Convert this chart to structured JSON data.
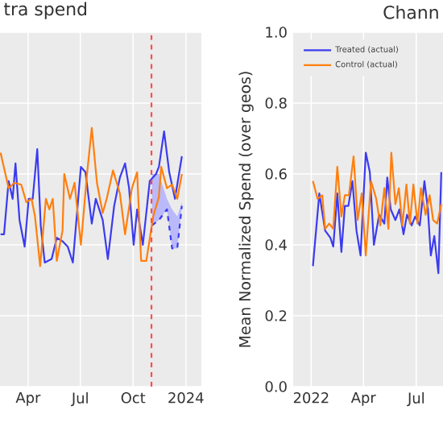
{
  "chart_data": [
    {
      "type": "line",
      "title": "tra spend",
      "xlim": [
        "2023-02-11",
        "2024-01-28"
      ],
      "xticks": [
        {
          "value": "2023-04-01",
          "label": "Apr"
        },
        {
          "value": "2023-07-01",
          "label": "Jul"
        },
        {
          "value": "2023-10-01",
          "label": "Oct"
        },
        {
          "value": "2024-01-01",
          "label": "2024"
        }
      ],
      "ylim": [
        0,
        1
      ],
      "yticks": [
        0,
        0.2,
        0.4,
        0.6,
        0.8,
        1
      ],
      "tick_labels": "x",
      "grid": true,
      "series": [
        {
          "color": "#3b3bf0",
          "line_style": "dashed",
          "x": [
            "2023-11-03",
            "2023-11-15",
            "2023-11-29",
            "2023-12-08",
            "2023-12-17",
            "2023-12-25"
          ],
          "values": [
            0.455,
            0.47,
            0.5,
            0.39,
            0.39,
            0.51
          ],
          "lower": [
            0.455,
            0.47,
            0.5,
            0.39,
            0.39,
            0.51
          ],
          "upper": [
            0.6,
            0.6,
            0.53,
            0.5,
            0.48,
            0.52
          ]
        },
        {
          "color": "#3b3bf0",
          "x": [
            "2023-02-12",
            "2023-02-18",
            "2023-02-26",
            "2023-03-05",
            "2023-03-10",
            "2023-03-17",
            "2023-03-26",
            "2023-04-02",
            "2023-04-09",
            "2023-04-17",
            "2023-04-23",
            "2023-04-30",
            "2023-05-12",
            "2023-05-21",
            "2023-05-31",
            "2023-06-09",
            "2023-06-18",
            "2023-07-02",
            "2023-07-10",
            "2023-07-21",
            "2023-07-28",
            "2023-08-09",
            "2023-08-18",
            "2023-08-29",
            "2023-09-08",
            "2023-09-17",
            "2023-09-24",
            "2023-10-02",
            "2023-10-08",
            "2023-10-18",
            "2023-10-30",
            "2023-11-10",
            "2023-11-15",
            "2023-11-24",
            "2023-12-03",
            "2023-12-13",
            "2023-12-25"
          ],
          "values": [
            0.43,
            0.43,
            0.58,
            0.53,
            0.63,
            0.47,
            0.395,
            0.53,
            0.53,
            0.67,
            0.455,
            0.35,
            0.36,
            0.42,
            0.41,
            0.395,
            0.35,
            0.62,
            0.605,
            0.46,
            0.53,
            0.47,
            0.36,
            0.51,
            0.59,
            0.63,
            0.56,
            0.4,
            0.5,
            0.4,
            0.58,
            0.6,
            0.62,
            0.72,
            0.605,
            0.53,
            0.65
          ]
        },
        {
          "color": "#ff7f0e",
          "x": [
            "2023-02-12",
            "2023-02-26",
            "2023-03-08",
            "2023-03-20",
            "2023-03-29",
            "2023-04-07",
            "2023-04-13",
            "2023-04-22",
            "2023-05-02",
            "2023-05-08",
            "2023-05-14",
            "2023-05-21",
            "2023-05-31",
            "2023-06-03",
            "2023-06-13",
            "2023-06-21",
            "2023-07-02",
            "2023-07-13",
            "2023-07-21",
            "2023-07-30",
            "2023-08-09",
            "2023-08-16",
            "2023-08-27",
            "2023-09-08",
            "2023-09-17",
            "2023-09-29",
            "2023-10-08",
            "2023-10-15",
            "2023-10-24",
            "2023-11-05",
            "2023-11-15",
            "2023-11-19",
            "2023-11-29",
            "2023-12-08",
            "2023-12-17",
            "2023-12-25"
          ],
          "values": [
            0.66,
            0.56,
            0.575,
            0.57,
            0.52,
            0.53,
            0.48,
            0.34,
            0.53,
            0.5,
            0.53,
            0.355,
            0.44,
            0.6,
            0.53,
            0.575,
            0.4,
            0.605,
            0.73,
            0.575,
            0.49,
            0.53,
            0.61,
            0.545,
            0.43,
            0.56,
            0.605,
            0.355,
            0.355,
            0.48,
            0.535,
            0.62,
            0.56,
            0.57,
            0.53,
            0.6
          ]
        }
      ],
      "ref_lines": [
        {
          "axis": "x",
          "value": "2023-11-02",
          "color": "#ff4d4d",
          "line_style": "dashed"
        }
      ]
    },
    {
      "type": "line",
      "title": "Chann",
      "ylabel": "Mean Normalized Spend (over geos)",
      "xlim": [
        "2021-12-01",
        "2022-08-16"
      ],
      "xticks": [
        {
          "value": "2022-01-01",
          "label": "2022"
        },
        {
          "value": "2022-04-01",
          "label": "Apr"
        },
        {
          "value": "2022-07-01",
          "label": "Jul"
        }
      ],
      "ylim": [
        0,
        1
      ],
      "yticks": [
        {
          "value": 0,
          "label": "0.0"
        },
        0.2,
        0.4,
        0.6,
        0.8,
        {
          "value": 1,
          "label": "1.0"
        }
      ],
      "grid": true,
      "legend": "top left",
      "series": [
        {
          "name": "Treated (actual)",
          "color": "#3b3bf0",
          "x": [
            "2022-01-04",
            "2022-01-15",
            "2022-01-25",
            "2022-02-03",
            "2022-02-08",
            "2022-02-15",
            "2022-02-22",
            "2022-02-28",
            "2022-03-06",
            "2022-03-13",
            "2022-03-20",
            "2022-03-27",
            "2022-04-05",
            "2022-04-12",
            "2022-04-19",
            "2022-04-28",
            "2022-05-07",
            "2022-05-12",
            "2022-05-18",
            "2022-05-26",
            "2022-06-02",
            "2022-06-09",
            "2022-06-15",
            "2022-06-23",
            "2022-06-29",
            "2022-07-07",
            "2022-07-15",
            "2022-07-21",
            "2022-07-26",
            "2022-08-01",
            "2022-08-08",
            "2022-08-13"
          ],
          "values": [
            0.34,
            0.545,
            0.44,
            0.42,
            0.395,
            0.545,
            0.38,
            0.51,
            0.51,
            0.58,
            0.44,
            0.37,
            0.66,
            0.605,
            0.4,
            0.485,
            0.46,
            0.59,
            0.5,
            0.47,
            0.5,
            0.43,
            0.485,
            0.455,
            0.48,
            0.455,
            0.58,
            0.5,
            0.37,
            0.425,
            0.32,
            0.605
          ]
        },
        {
          "name": "Control (actual)",
          "color": "#ff7f0e",
          "x": [
            "2022-01-04",
            "2022-01-12",
            "2022-01-20",
            "2022-01-25",
            "2022-02-01",
            "2022-02-08",
            "2022-02-15",
            "2022-02-22",
            "2022-02-28",
            "2022-03-07",
            "2022-03-15",
            "2022-03-22",
            "2022-03-29",
            "2022-04-05",
            "2022-04-14",
            "2022-04-23",
            "2022-04-30",
            "2022-05-07",
            "2022-05-14",
            "2022-05-19",
            "2022-05-26",
            "2022-06-01",
            "2022-06-07",
            "2022-06-14",
            "2022-06-20",
            "2022-06-26",
            "2022-07-03",
            "2022-07-09",
            "2022-07-17",
            "2022-07-24",
            "2022-07-30",
            "2022-08-06",
            "2022-08-13"
          ],
          "values": [
            0.58,
            0.53,
            0.54,
            0.445,
            0.46,
            0.445,
            0.62,
            0.48,
            0.54,
            0.54,
            0.65,
            0.47,
            0.545,
            0.37,
            0.58,
            0.53,
            0.455,
            0.56,
            0.445,
            0.66,
            0.515,
            0.56,
            0.455,
            0.57,
            0.46,
            0.57,
            0.46,
            0.56,
            0.485,
            0.54,
            0.47,
            0.46,
            0.515
          ]
        }
      ]
    }
  ]
}
